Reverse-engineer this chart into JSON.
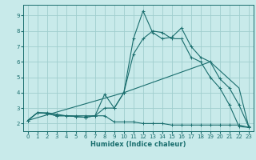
{
  "title": "",
  "xlabel": "Humidex (Indice chaleur)",
  "bg_color": "#c8eaea",
  "grid_color": "#a0cece",
  "line_color": "#1a6e6e",
  "xlim": [
    -0.5,
    23.5
  ],
  "ylim": [
    1.5,
    9.7
  ],
  "xticks": [
    0,
    1,
    2,
    3,
    4,
    5,
    6,
    7,
    8,
    9,
    10,
    11,
    12,
    13,
    14,
    15,
    16,
    17,
    18,
    19,
    20,
    21,
    22,
    23
  ],
  "yticks": [
    2,
    3,
    4,
    5,
    6,
    7,
    8,
    9
  ],
  "line1_x": [
    0,
    1,
    2,
    3,
    4,
    5,
    6,
    7,
    8,
    9,
    10,
    11,
    12,
    13,
    14,
    15,
    16,
    17,
    18,
    19,
    20,
    21,
    22,
    23
  ],
  "line1_y": [
    2.2,
    2.7,
    2.7,
    2.6,
    2.5,
    2.5,
    2.5,
    2.5,
    3.0,
    3.0,
    4.0,
    7.5,
    9.3,
    7.9,
    7.5,
    7.6,
    8.2,
    7.0,
    6.3,
    6.0,
    4.9,
    4.3,
    3.2,
    1.8
  ],
  "line2_x": [
    0,
    1,
    2,
    3,
    4,
    5,
    6,
    7,
    8,
    9,
    10,
    11,
    12,
    13,
    14,
    15,
    16,
    17,
    18,
    19,
    20,
    21,
    22,
    23
  ],
  "line2_y": [
    2.2,
    2.7,
    2.65,
    2.5,
    2.5,
    2.45,
    2.4,
    2.5,
    3.9,
    3.0,
    4.0,
    6.5,
    7.5,
    8.0,
    7.9,
    7.5,
    7.5,
    6.3,
    6.0,
    5.0,
    4.3,
    3.2,
    1.8,
    1.75
  ],
  "line3_x": [
    0,
    1,
    2,
    3,
    4,
    5,
    6,
    7,
    8,
    9,
    10,
    11,
    12,
    13,
    14,
    15,
    16,
    17,
    18,
    19,
    20,
    21,
    22,
    23
  ],
  "line3_y": [
    2.2,
    2.7,
    2.65,
    2.5,
    2.5,
    2.45,
    2.4,
    2.5,
    2.5,
    2.1,
    2.1,
    2.1,
    2.0,
    2.0,
    2.0,
    1.9,
    1.9,
    1.9,
    1.9,
    1.9,
    1.9,
    1.9,
    1.9,
    1.75
  ],
  "line4_x": [
    0,
    10,
    19,
    22,
    23
  ],
  "line4_y": [
    2.2,
    4.0,
    6.0,
    4.3,
    1.8
  ]
}
